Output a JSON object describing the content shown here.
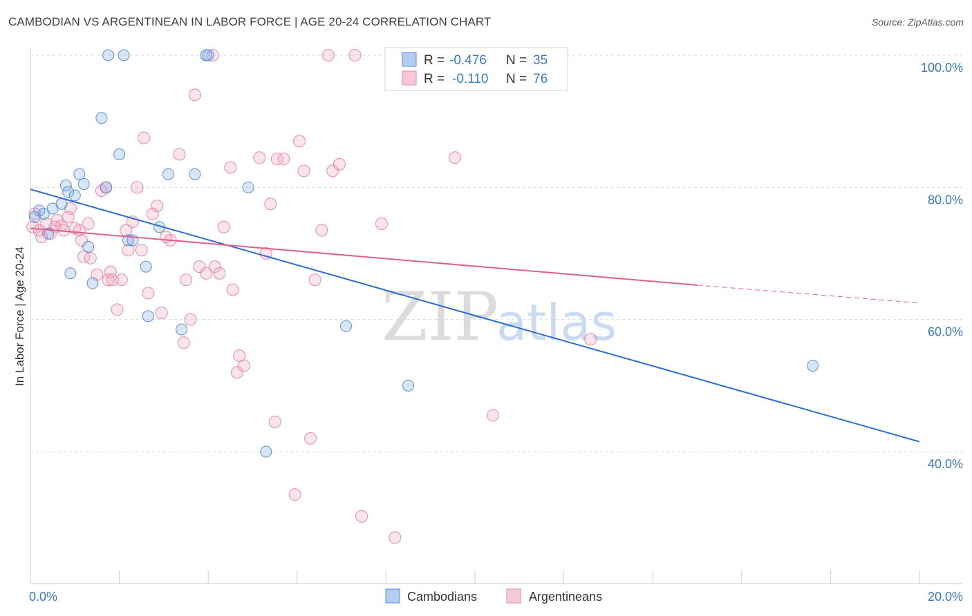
{
  "title": "CAMBODIAN VS ARGENTINEAN IN LABOR FORCE | AGE 20-24 CORRELATION CHART",
  "source": "Source: ZipAtlas.com",
  "watermark": {
    "zip": "ZIP",
    "atlas": "atlas"
  },
  "colors": {
    "cambodians": "#5b8fd6",
    "cambodians_fill": "rgba(120,165,230,0.28)",
    "cambodians_line": "#2b6dcf",
    "argentineans": "#e88aa8",
    "argentineans_fill": "rgba(240,150,180,0.25)",
    "argentineans_line": "#e0608c",
    "axis_text": "#3a78c9",
    "grid": "#d9d9d9"
  },
  "legend": {
    "row1": {
      "r_label": "R = ",
      "r_value": "-0.476",
      "n_label": "N = ",
      "n_value": "35"
    },
    "row2": {
      "r_label": "R = ",
      "r_value": "-0.110",
      "n_label": "N = ",
      "n_value": "76"
    }
  },
  "bottom_legend": {
    "cambodians": "Cambodians",
    "argentineans": "Argentineans"
  },
  "chart_data": {
    "type": "scatter",
    "title": "CAMBODIAN VS ARGENTINEAN IN LABOR FORCE | AGE 20-24 CORRELATION CHART",
    "xlabel": "",
    "ylabel": "In Labor Force | Age 20-24",
    "xlim": [
      0,
      20
    ],
    "ylim": [
      20,
      102
    ],
    "x_tick_labels": [
      {
        "value": 0,
        "label": "0.0%"
      },
      {
        "value": 20,
        "label": "20.0%"
      }
    ],
    "y_tick_labels": [
      {
        "value": 100,
        "label": "100.0%"
      },
      {
        "value": 80,
        "label": "80.0%"
      },
      {
        "value": 60,
        "label": "60.0%"
      },
      {
        "value": 40,
        "label": "40.0%"
      }
    ],
    "series": [
      {
        "name": "Cambodians",
        "R": -0.476,
        "N": 35,
        "trend": {
          "x": [
            0,
            20
          ],
          "y": [
            79.7,
            41.5
          ],
          "dashed_after": null
        },
        "points": [
          [
            0.1,
            75.5
          ],
          [
            0.2,
            76.5
          ],
          [
            0.3,
            76.0
          ],
          [
            0.4,
            73.0
          ],
          [
            0.5,
            76.8
          ],
          [
            0.7,
            77.5
          ],
          [
            0.8,
            80.3
          ],
          [
            0.85,
            79.3
          ],
          [
            1.0,
            78.8
          ],
          [
            1.1,
            82.0
          ],
          [
            1.2,
            80.5
          ],
          [
            1.3,
            71.0
          ],
          [
            0.9,
            67.0
          ],
          [
            1.4,
            65.5
          ],
          [
            1.6,
            90.5
          ],
          [
            1.7,
            80.0
          ],
          [
            1.75,
            100.0
          ],
          [
            2.0,
            85.0
          ],
          [
            2.1,
            100.0
          ],
          [
            2.2,
            72.0
          ],
          [
            2.3,
            72.0
          ],
          [
            2.6,
            68.0
          ],
          [
            2.65,
            60.5
          ],
          [
            2.9,
            74.0
          ],
          [
            3.1,
            82.0
          ],
          [
            3.4,
            58.5
          ],
          [
            3.7,
            82.0
          ],
          [
            3.95,
            100.0
          ],
          [
            4.0,
            100.0
          ],
          [
            4.9,
            80.0
          ],
          [
            5.3,
            40.0
          ],
          [
            7.1,
            59.0
          ],
          [
            8.5,
            50.0
          ],
          [
            11.0,
            100.0
          ],
          [
            17.6,
            53.0
          ]
        ]
      },
      {
        "name": "Argentineans",
        "R": -0.11,
        "N": 76,
        "trend": {
          "x": [
            0,
            15,
            20
          ],
          "y": [
            73.8,
            65.2,
            62.5
          ],
          "dashed_after": 15
        },
        "points": [
          [
            0.05,
            74.0
          ],
          [
            0.1,
            76.0
          ],
          [
            0.2,
            73.5
          ],
          [
            0.25,
            72.5
          ],
          [
            0.35,
            74.5
          ],
          [
            0.45,
            73.0
          ],
          [
            0.55,
            74.0
          ],
          [
            0.6,
            75.0
          ],
          [
            0.7,
            74.2
          ],
          [
            0.75,
            73.5
          ],
          [
            0.85,
            75.5
          ],
          [
            0.9,
            76.8
          ],
          [
            1.0,
            73.8
          ],
          [
            1.1,
            73.5
          ],
          [
            1.15,
            72.0
          ],
          [
            1.2,
            69.5
          ],
          [
            1.3,
            74.5
          ],
          [
            1.35,
            69.3
          ],
          [
            1.5,
            66.8
          ],
          [
            1.6,
            79.5
          ],
          [
            1.7,
            80.0
          ],
          [
            1.75,
            66.0
          ],
          [
            1.8,
            67.2
          ],
          [
            1.85,
            66.0
          ],
          [
            1.95,
            61.5
          ],
          [
            2.05,
            66.0
          ],
          [
            2.15,
            73.5
          ],
          [
            2.2,
            70.5
          ],
          [
            2.3,
            74.8
          ],
          [
            2.4,
            80.0
          ],
          [
            2.5,
            70.5
          ],
          [
            2.55,
            87.5
          ],
          [
            2.65,
            64.0
          ],
          [
            2.75,
            76.0
          ],
          [
            2.85,
            77.2
          ],
          [
            2.95,
            61.0
          ],
          [
            3.05,
            72.5
          ],
          [
            3.15,
            72.0
          ],
          [
            3.35,
            85.0
          ],
          [
            3.45,
            56.5
          ],
          [
            3.5,
            66.0
          ],
          [
            3.6,
            60.0
          ],
          [
            3.7,
            94.0
          ],
          [
            3.8,
            68.0
          ],
          [
            3.95,
            67.0
          ],
          [
            4.1,
            100.0
          ],
          [
            4.15,
            68.0
          ],
          [
            4.25,
            67.0
          ],
          [
            4.35,
            74.0
          ],
          [
            4.5,
            83.0
          ],
          [
            4.55,
            64.5
          ],
          [
            4.65,
            52.0
          ],
          [
            4.7,
            54.5
          ],
          [
            4.8,
            53.0
          ],
          [
            5.15,
            84.5
          ],
          [
            5.3,
            70.0
          ],
          [
            5.4,
            77.5
          ],
          [
            5.5,
            44.5
          ],
          [
            5.55,
            84.3
          ],
          [
            5.7,
            84.3
          ],
          [
            5.95,
            33.5
          ],
          [
            6.05,
            87.0
          ],
          [
            6.15,
            82.5
          ],
          [
            6.3,
            42.0
          ],
          [
            6.4,
            66.0
          ],
          [
            6.55,
            73.5
          ],
          [
            6.7,
            100.0
          ],
          [
            6.8,
            82.5
          ],
          [
            6.95,
            83.5
          ],
          [
            7.3,
            100.0
          ],
          [
            7.45,
            30.2
          ],
          [
            7.9,
            74.5
          ],
          [
            8.2,
            27.0
          ],
          [
            9.55,
            84.5
          ],
          [
            10.4,
            45.5
          ],
          [
            12.6,
            57.0
          ]
        ]
      }
    ]
  }
}
